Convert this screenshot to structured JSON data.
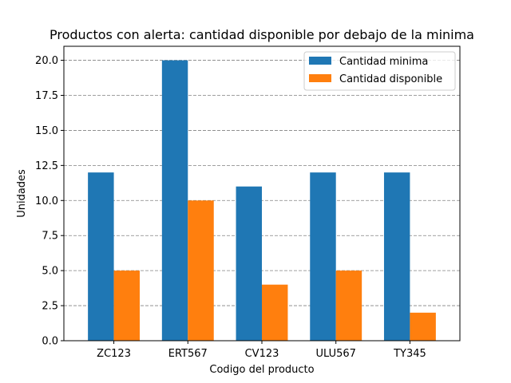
{
  "chart_data": {
    "type": "bar",
    "title": "Productos con alerta: cantidad disponible por debajo de la minima",
    "xlabel": "Codigo del producto",
    "ylabel": "Unidades",
    "categories": [
      "ZC123",
      "ERT567",
      "CV123",
      "ULU567",
      "TY345"
    ],
    "series": [
      {
        "name": "Cantidad minima",
        "values": [
          12,
          20,
          11,
          12,
          12
        ],
        "color": "#1f77b4"
      },
      {
        "name": "Cantidad disponible",
        "values": [
          5,
          10,
          4,
          5,
          2
        ],
        "color": "#ff7f0e"
      }
    ],
    "ylim": [
      0,
      21
    ],
    "yticks": [
      "0.0",
      "2.5",
      "5.0",
      "7.5",
      "10.0",
      "12.5",
      "15.0",
      "17.5",
      "20.0"
    ],
    "grid": "horizontal-dashed",
    "legend_position": "top-right"
  }
}
